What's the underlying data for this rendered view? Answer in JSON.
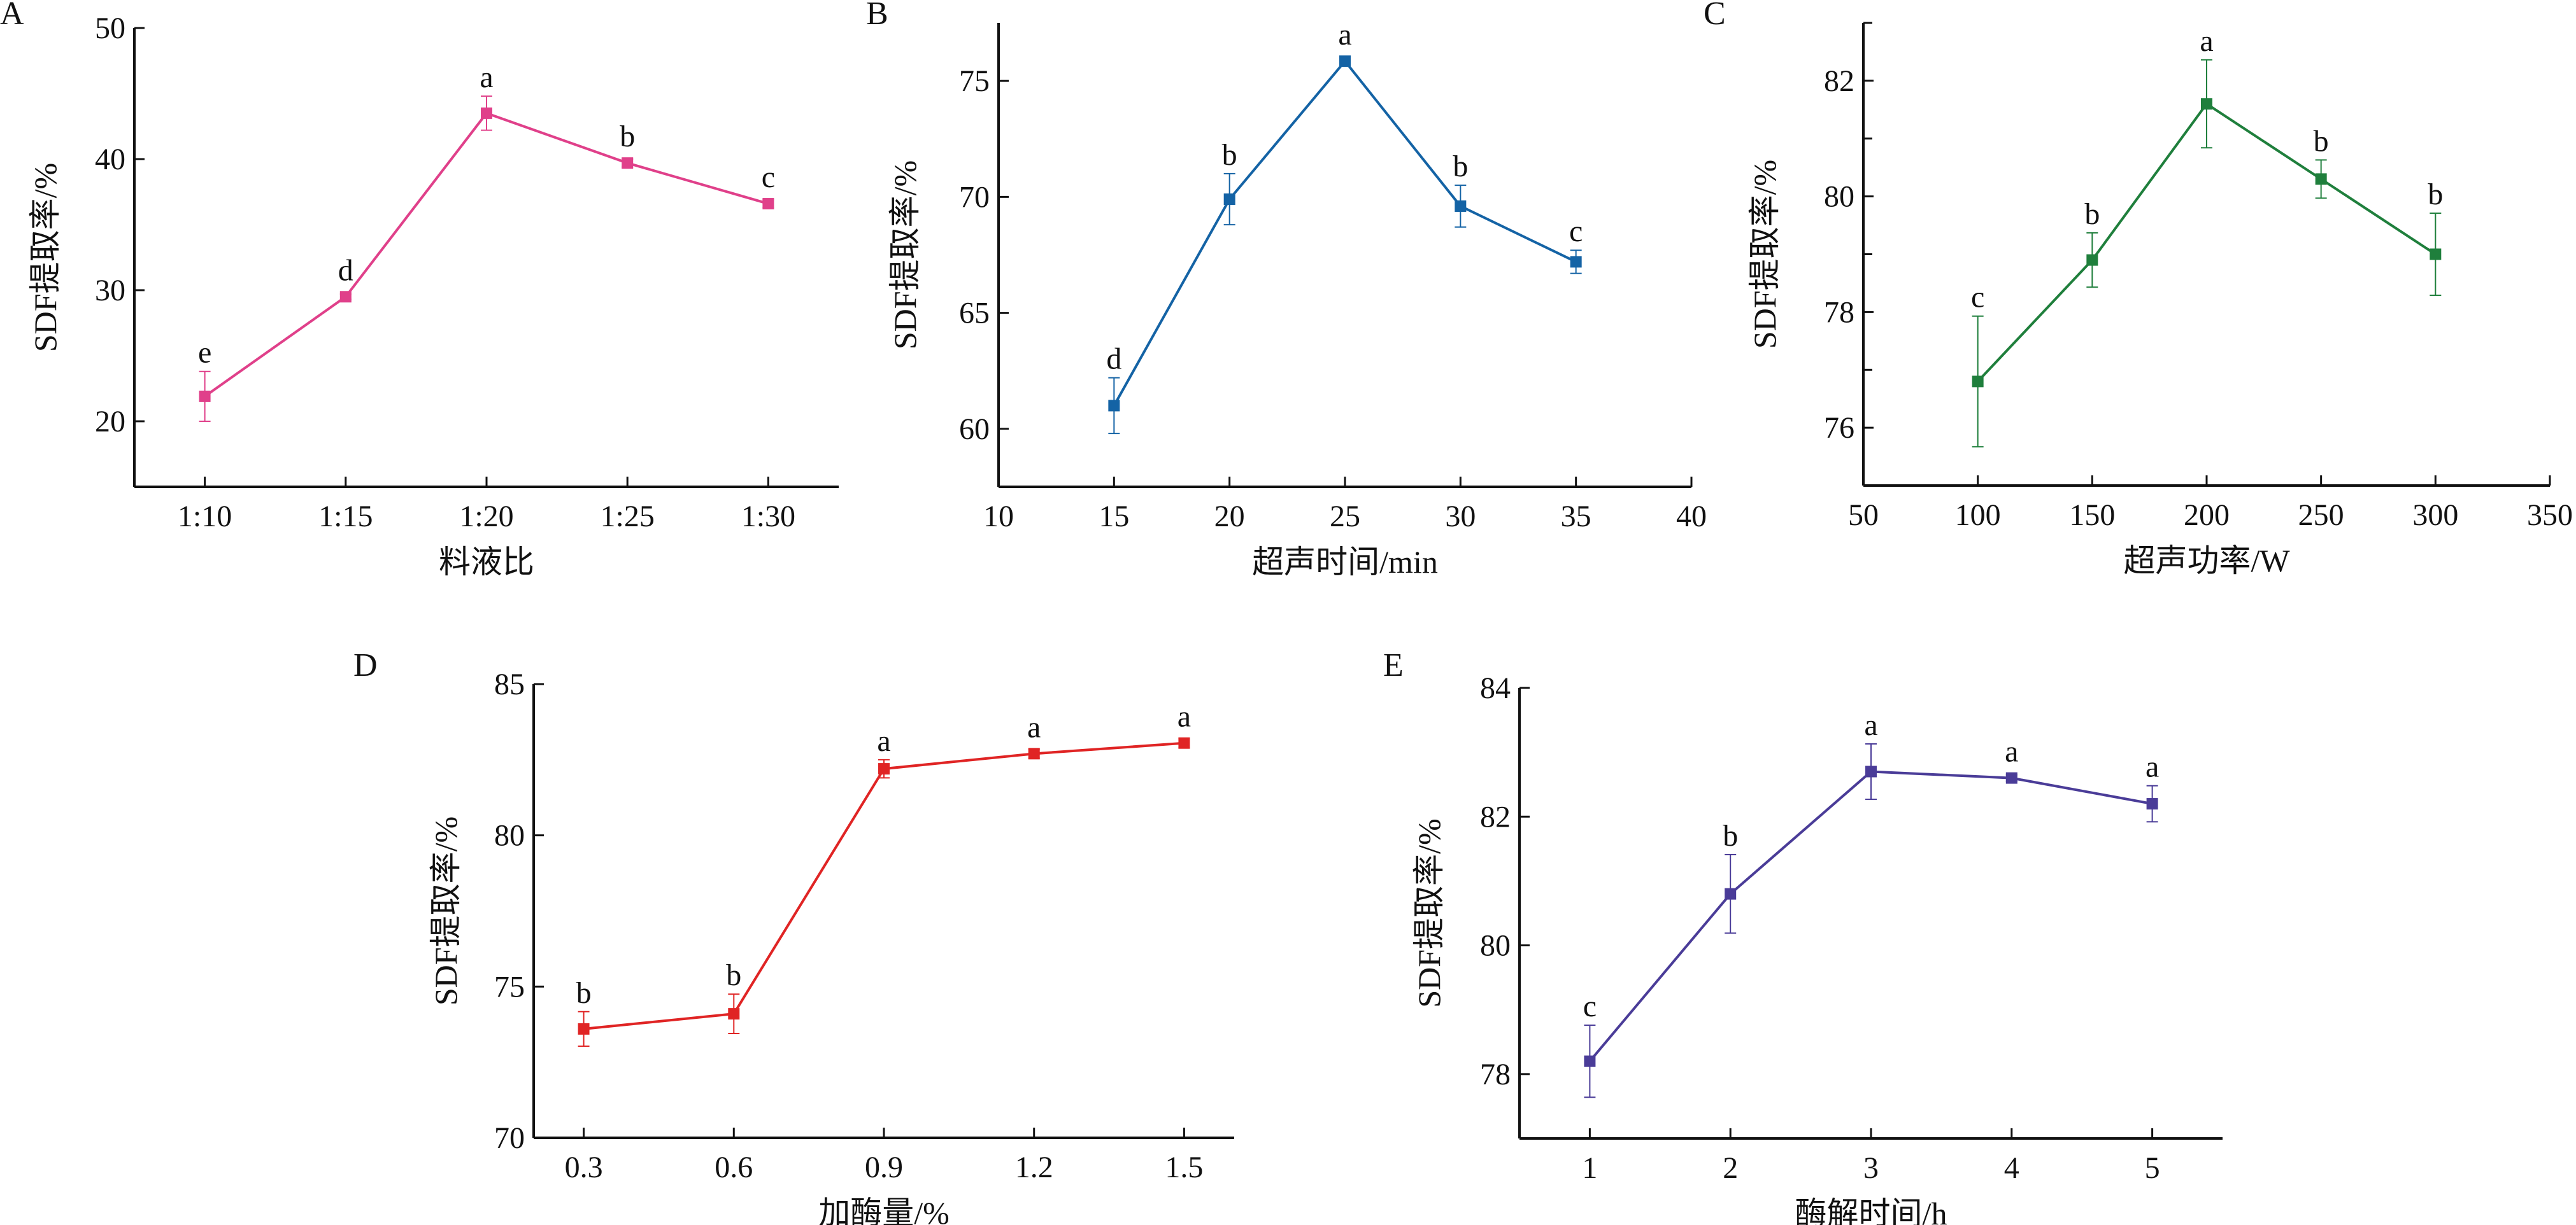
{
  "chart_data": [
    {
      "type": "line",
      "panel": "A",
      "title": "",
      "xlabel": "料液比",
      "ylabel": "SDF提取率/%",
      "x_type": "category",
      "categories": [
        "1:10",
        "1:15",
        "1:20",
        "1:25",
        "1:30"
      ],
      "values": [
        21.9,
        29.5,
        43.5,
        39.7,
        36.6
      ],
      "errors": [
        1.9,
        0.2,
        1.3,
        0.3,
        0.3
      ],
      "letters": [
        "e",
        "d",
        "a",
        "b",
        "c"
      ],
      "xlim": [
        -0.5,
        4.5
      ],
      "ylim": [
        15,
        50
      ],
      "yticks": [
        20,
        30,
        40,
        50
      ],
      "yticks_minor": [],
      "color": "#e0408a",
      "grid": false
    },
    {
      "type": "line",
      "panel": "B",
      "title": "",
      "xlabel": "超声时间/min",
      "ylabel": "SDF提取率/%",
      "x_type": "numeric",
      "x": [
        15,
        20,
        25,
        30,
        35
      ],
      "values": [
        61.0,
        69.9,
        75.85,
        69.6,
        67.2
      ],
      "errors": [
        1.2,
        1.1,
        0.1,
        0.9,
        0.5
      ],
      "letters": [
        "d",
        "b",
        "a",
        "b",
        "c"
      ],
      "xlim": [
        10,
        40
      ],
      "xticks": [
        10,
        15,
        20,
        25,
        30,
        35,
        40
      ],
      "ylim": [
        57.5,
        77.5
      ],
      "yticks": [
        60,
        65,
        70,
        75
      ],
      "yticks_minor": [],
      "color": "#1463a5",
      "grid": false
    },
    {
      "type": "line",
      "panel": "C",
      "title": "",
      "xlabel": "超声功率/W",
      "ylabel": "SDF提取率/%",
      "x_type": "numeric",
      "x": [
        100,
        150,
        200,
        250,
        300
      ],
      "values": [
        76.8,
        78.9,
        81.6,
        80.3,
        79.0
      ],
      "errors": [
        1.13,
        0.47,
        0.76,
        0.33,
        0.71
      ],
      "letters": [
        "c",
        "b",
        "a",
        "b",
        "b"
      ],
      "xlim": [
        50,
        350
      ],
      "xticks": [
        50,
        100,
        150,
        200,
        250,
        300,
        350
      ],
      "ylim": [
        75,
        83
      ],
      "yticks": [
        76,
        78,
        80,
        82
      ],
      "yticks_minor": [
        77,
        79,
        81,
        83
      ],
      "color": "#1f7f3c",
      "grid": false
    },
    {
      "type": "line",
      "panel": "D",
      "title": "",
      "xlabel": "加酶量/%",
      "ylabel": "SDF提取率/%",
      "x_type": "numeric",
      "x": [
        0.3,
        0.6,
        0.9,
        1.2,
        1.5
      ],
      "xticklabels": [
        "0.3",
        "0.6",
        "0.9",
        "1.2",
        "1.5"
      ],
      "values": [
        73.6,
        74.1,
        82.2,
        82.7,
        83.05
      ],
      "errors": [
        0.57,
        0.65,
        0.3,
        0.15,
        0.15
      ],
      "letters": [
        "b",
        "b",
        "a",
        "a",
        "a"
      ],
      "xlim": [
        0.2,
        1.6
      ],
      "xticks": [
        0.3,
        0.6,
        0.9,
        1.2,
        1.5
      ],
      "ylim": [
        70,
        85
      ],
      "yticks": [
        70,
        75,
        80,
        85
      ],
      "yticks_minor": [],
      "color": "#e02424",
      "grid": false
    },
    {
      "type": "line",
      "panel": "E",
      "title": "",
      "xlabel": "酶解时间/h",
      "ylabel": "SDF提取率/%",
      "x_type": "numeric",
      "x": [
        1,
        2,
        3,
        4,
        5
      ],
      "values": [
        78.2,
        80.8,
        82.7,
        82.6,
        82.2
      ],
      "errors": [
        0.56,
        0.61,
        0.43,
        0.05,
        0.28
      ],
      "letters": [
        "c",
        "b",
        "a",
        "a",
        "a"
      ],
      "xlim": [
        0.5,
        5.5
      ],
      "xticks": [
        1,
        2,
        3,
        4,
        5
      ],
      "ylim": [
        77,
        84
      ],
      "yticks": [
        78,
        80,
        82,
        84
      ],
      "yticks_minor": [],
      "color": "#4a3c98",
      "grid": false
    }
  ]
}
